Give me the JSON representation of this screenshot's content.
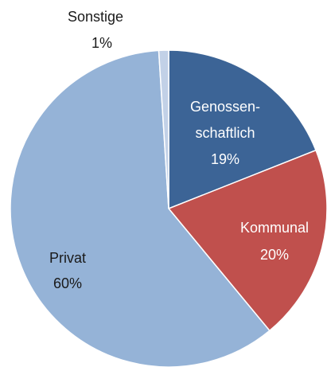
{
  "chart_data": {
    "type": "pie",
    "categories": [
      [
        "Genossen-",
        "schaftlich"
      ],
      [
        "Kommunal"
      ],
      [
        "Privat"
      ],
      [
        "Sonstige"
      ]
    ],
    "values": [
      19,
      20,
      60,
      1
    ],
    "value_labels": [
      "19%",
      "20%",
      "60%",
      "1%"
    ],
    "colors": [
      "#3c6496",
      "#c0504d",
      "#95b3d7",
      "#c2d1e7"
    ],
    "label_colors": [
      "#ffffff",
      "#ffffff",
      "#1a1a1a",
      "#1a1a1a"
    ]
  }
}
